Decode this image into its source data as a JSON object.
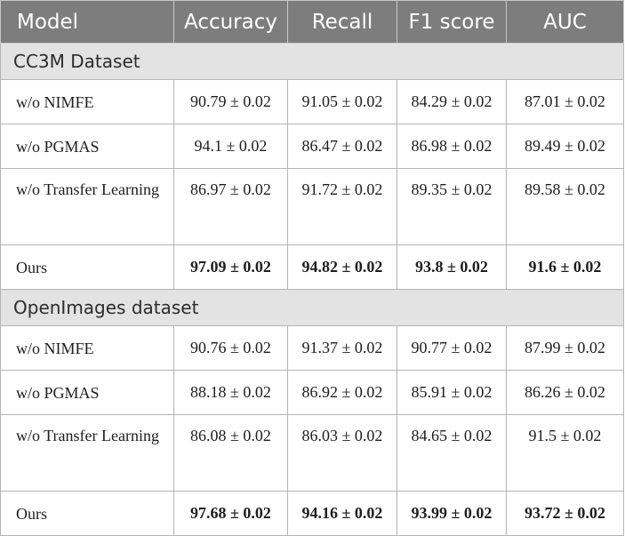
{
  "headers": [
    "Model",
    "Accuracy",
    "Recall",
    "F1 score",
    "AUC"
  ],
  "sections": [
    {
      "title": "CC3M Dataset",
      "rows": [
        {
          "model": "w/o NIMFE",
          "values": [
            "90.79 ± 0.02",
            "91.05 ± 0.02",
            "84.29 ± 0.02",
            "87.01 ± 0.02"
          ],
          "bold": false
        },
        {
          "model": "w/o PGMAS",
          "values": [
            "94.1 ± 0.02",
            "86.47 ± 0.02",
            "86.98 ± 0.02",
            "89.49 ± 0.02"
          ],
          "bold": false
        },
        {
          "model": "w/o Transfer Learning",
          "values": [
            "86.97 ± 0.02",
            "91.72 ± 0.02",
            "89.35 ± 0.02",
            "89.58 ± 0.02"
          ],
          "bold": false
        },
        {
          "model": "Ours",
          "values": [
            "97.09 ± 0.02",
            "94.82 ± 0.02",
            "93.8 ± 0.02",
            "91.6 ± 0.02"
          ],
          "bold": true
        }
      ]
    },
    {
      "title": "OpenImages dataset",
      "rows": [
        {
          "model": "w/o NIMFE",
          "values": [
            "90.76 ± 0.02",
            "91.37 ± 0.02",
            "90.77 ± 0.02",
            "87.99 ± 0.02"
          ],
          "bold": false
        },
        {
          "model": "w/o PGMAS",
          "values": [
            "88.18 ± 0.02",
            "86.92 ± 0.02",
            "85.91 ± 0.02",
            "86.26 ± 0.02"
          ],
          "bold": false
        },
        {
          "model": "w/o Transfer Learning",
          "values": [
            "86.08 ± 0.02",
            "86.03 ± 0.02",
            "84.65 ± 0.02",
            "91.5 ± 0.02"
          ],
          "bold": false
        },
        {
          "model": "Ours",
          "values": [
            "97.68 ± 0.02",
            "94.16 ± 0.02",
            "93.99 ± 0.02",
            "93.72 ± 0.02"
          ],
          "bold": true
        }
      ]
    }
  ]
}
